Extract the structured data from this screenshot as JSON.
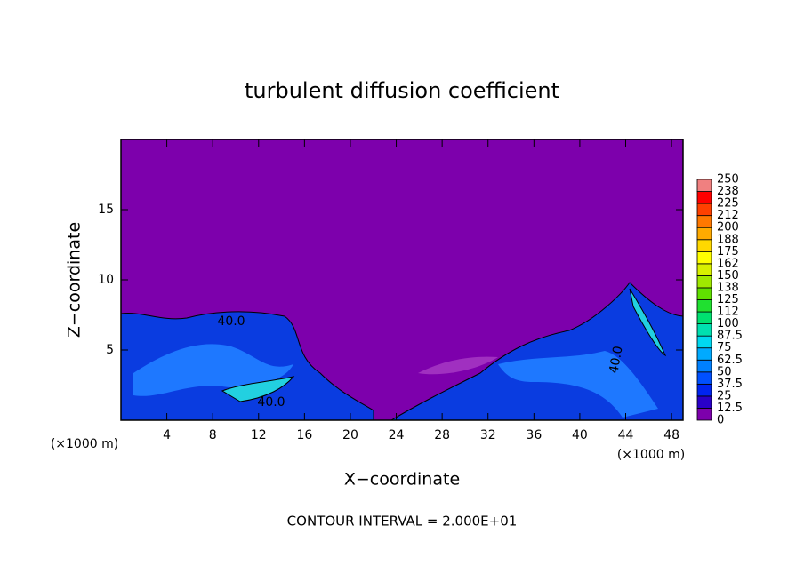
{
  "chart_data": {
    "type": "contour",
    "title": "turbulent diffusion coefficient",
    "x_label": "X−coordinate",
    "y_label": "Z−coordinate",
    "x_unit": "(×1000 m)",
    "y_unit": "(×1000 m)",
    "footer": "CONTOUR INTERVAL = 2.000E+01",
    "xlim": [
      0,
      49
    ],
    "ylim": [
      0,
      20
    ],
    "xticks": [
      4,
      8,
      12,
      16,
      20,
      24,
      28,
      32,
      36,
      40,
      44,
      48
    ],
    "yticks": [
      5,
      10,
      15
    ],
    "annotations": [
      "40.0",
      "40.0",
      "40.0"
    ],
    "colorbar": {
      "ticks": [
        0,
        12.5,
        25,
        37.5,
        50,
        62.5,
        75,
        87.5,
        100,
        {
          "value": 112.5,
          "label": "112"
        },
        125,
        {
          "value": 137.5,
          "label": "138"
        },
        150,
        {
          "value": 162.5,
          "label": "162"
        },
        175,
        {
          "value": 187.5,
          "label": "188"
        },
        200,
        {
          "value": 212.5,
          "label": "212"
        },
        225,
        {
          "value": 237.5,
          "label": "238"
        },
        250
      ],
      "colors": [
        "#7d00ac",
        "#2a00c8",
        "#0024f0",
        "#0050ff",
        "#0080ff",
        "#00aaff",
        "#00d8f0",
        "#00e0b0",
        "#00e070",
        "#20e030",
        "#60e000",
        "#a0e800",
        "#d8f000",
        "#ffff00",
        "#ffd800",
        "#ffaa00",
        "#ff7800",
        "#ff4000",
        "#ff0000",
        "#f08080"
      ]
    }
  }
}
